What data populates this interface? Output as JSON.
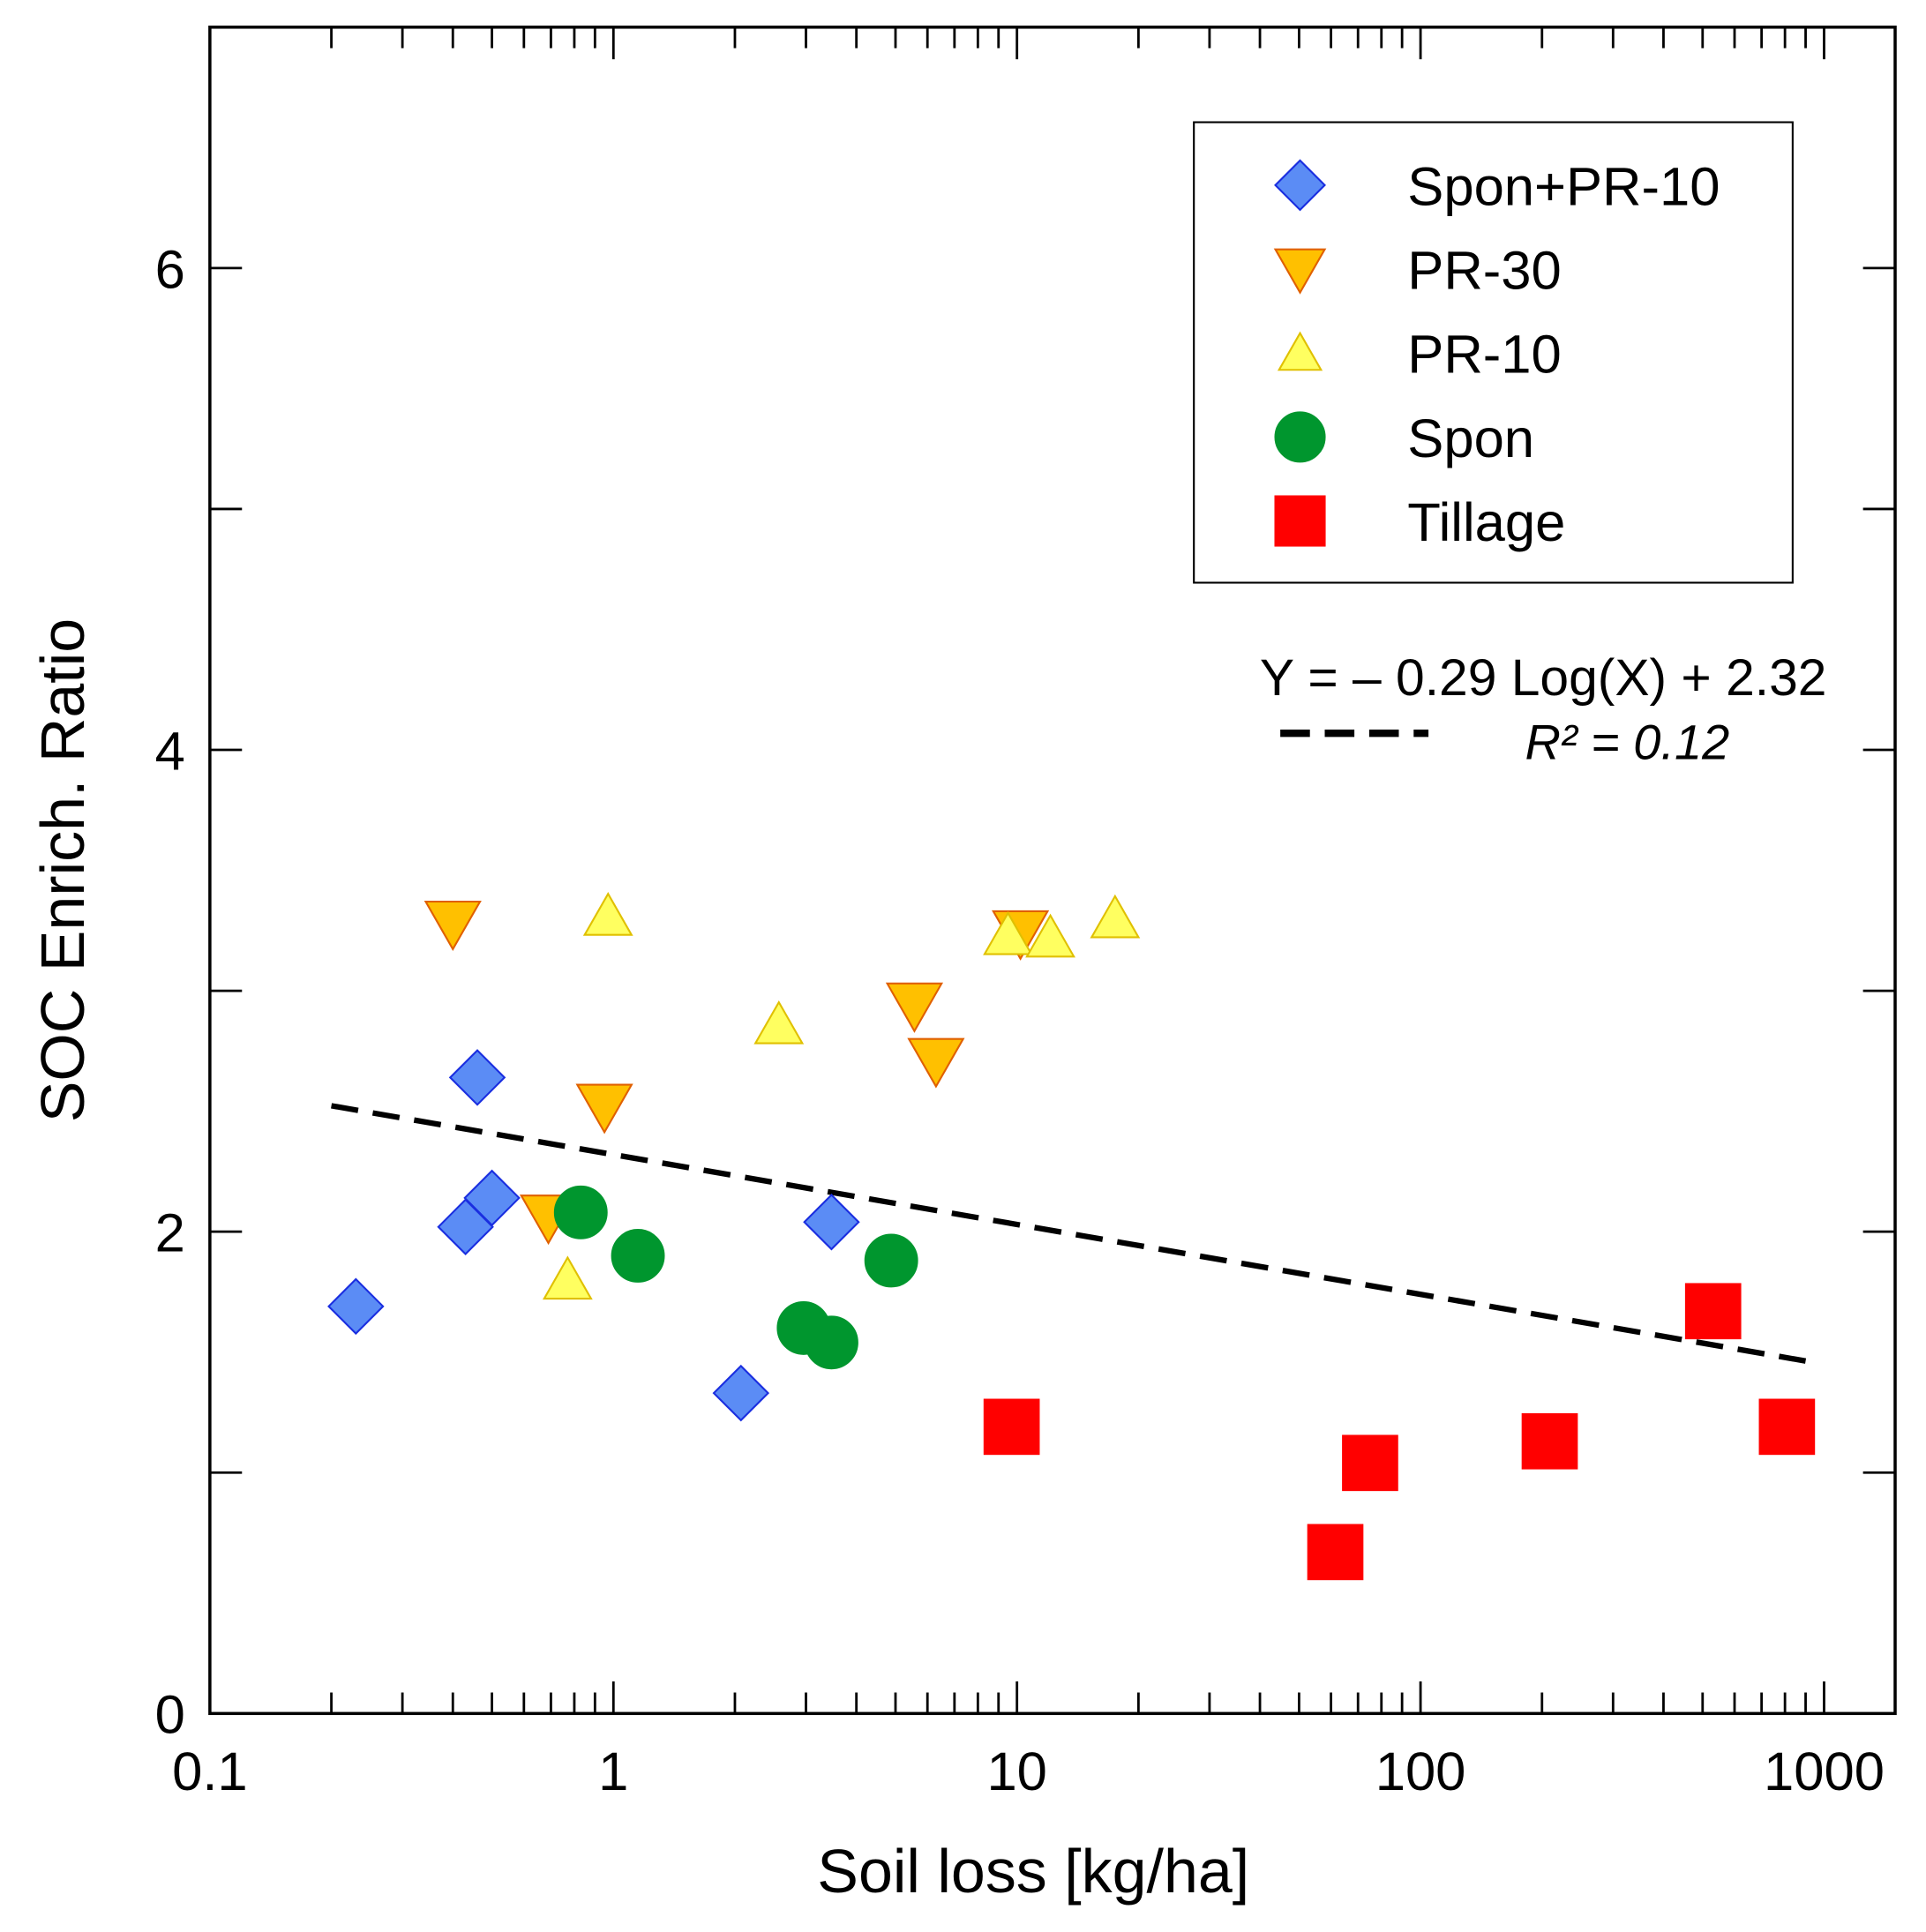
{
  "chart_data": {
    "type": "scatter",
    "title": "",
    "xlabel": "Soil loss [kg/ha]",
    "ylabel": "SOC Enrich. Ratio",
    "xscale": "log",
    "xlim": [
      0.1,
      1500
    ],
    "ylim": [
      0,
      7
    ],
    "xticks": [
      0.1,
      1,
      10,
      100,
      1000
    ],
    "xtick_labels": [
      "0.1",
      "1",
      "10",
      "100",
      "1000"
    ],
    "yticks": [
      0,
      2,
      4,
      6
    ],
    "ytick_labels": [
      "0",
      "2",
      "4",
      "6"
    ],
    "grid": false,
    "legend_position": "top-right",
    "series": [
      {
        "name": "Spon+PR-10",
        "marker": "diamond",
        "color": "#5b8cf5",
        "edge": "#1a2ee0",
        "points": [
          [
            0.23,
            1.69
          ],
          [
            0.46,
            2.64
          ],
          [
            0.43,
            2.02
          ],
          [
            0.5,
            2.14
          ],
          [
            2.07,
            1.33
          ],
          [
            3.47,
            2.04
          ]
        ]
      },
      {
        "name": "PR-30",
        "marker": "triangle-down",
        "color": "#ffc000",
        "edge": "#e06000",
        "points": [
          [
            0.4,
            3.28
          ],
          [
            0.95,
            2.52
          ],
          [
            0.69,
            2.06
          ],
          [
            5.57,
            2.94
          ],
          [
            6.3,
            2.71
          ],
          [
            10.2,
            3.24
          ]
        ]
      },
      {
        "name": "PR-10",
        "marker": "triangle-up",
        "color": "#ffff60",
        "edge": "#e0c000",
        "points": [
          [
            0.97,
            3.31
          ],
          [
            0.77,
            1.8
          ],
          [
            2.57,
            2.86
          ],
          [
            9.5,
            3.23
          ],
          [
            12.1,
            3.22
          ],
          [
            17.5,
            3.3
          ]
        ]
      },
      {
        "name": "Spon",
        "marker": "circle",
        "color": "#00962e",
        "edge": "#00962e",
        "points": [
          [
            0.83,
            2.08
          ],
          [
            1.15,
            1.9
          ],
          [
            2.96,
            1.6
          ],
          [
            3.47,
            1.54
          ],
          [
            4.88,
            1.88
          ]
        ]
      },
      {
        "name": "Tillage",
        "marker": "square",
        "color": "#ff0000",
        "edge": "#ff0000",
        "points": [
          [
            9.7,
            1.19
          ],
          [
            75,
            1.04
          ],
          [
            61.5,
            0.67
          ],
          [
            209,
            1.13
          ],
          [
            531,
            1.67
          ],
          [
            809,
            1.19
          ]
        ]
      }
    ],
    "fit": {
      "slope": -0.29,
      "intercept": 2.32,
      "x_range": [
        0.2,
        900
      ],
      "style": "dashed"
    },
    "annotations": {
      "equation": "Y = – 0.29 Log(X) + 2.32",
      "r2_label": "R² = 0.12"
    }
  }
}
